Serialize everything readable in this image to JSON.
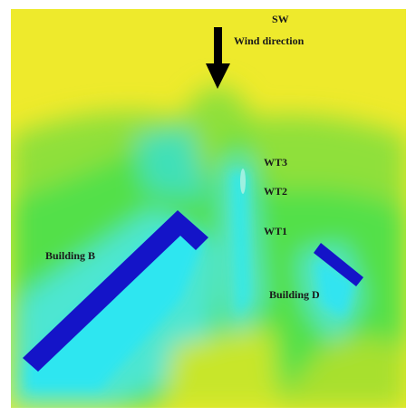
{
  "figure": {
    "wind": {
      "heading": "SW",
      "label": "Wind direction"
    },
    "turbines": [
      "WT3",
      "WT2",
      "WT1"
    ],
    "buildings": [
      "Building B",
      "Building D"
    ]
  }
}
